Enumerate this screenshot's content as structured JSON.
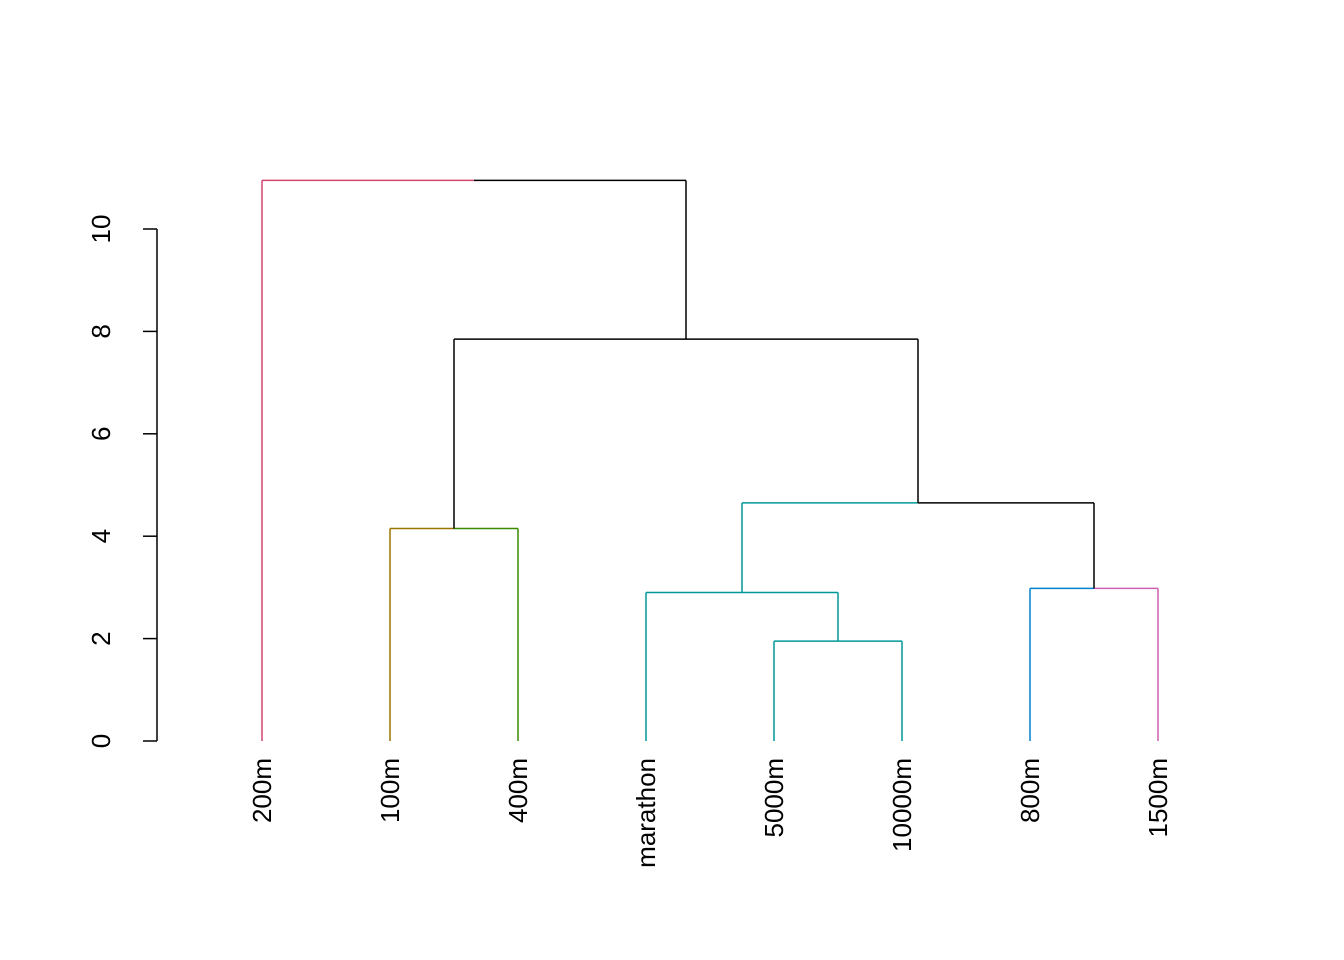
{
  "chart_data": {
    "type": "dendrogram",
    "title": "",
    "xlabel": "",
    "ylabel": "",
    "ylim": [
      0,
      10
    ],
    "yticks": [
      0,
      2,
      4,
      6,
      8,
      10
    ],
    "grid": false,
    "leaves": [
      "200m",
      "100m",
      "400m",
      "marathon",
      "5000m",
      "10000m",
      "800m",
      "1500m"
    ],
    "merges": [
      {
        "id": "n1",
        "left": "5000m",
        "right": "10000m",
        "height": 1.95,
        "left_color": "#009999",
        "right_color": "#009999"
      },
      {
        "id": "n2",
        "left": "marathon",
        "right": "n1",
        "height": 2.9,
        "left_color": "#009999",
        "right_color": "#009999"
      },
      {
        "id": "n3",
        "left": "800m",
        "right": "1500m",
        "height": 2.98,
        "left_color": "#0082CE",
        "right_color": "#CC61B0"
      },
      {
        "id": "n4",
        "left": "100m",
        "right": "400m",
        "height": 4.15,
        "left_color": "#9A7700",
        "right_color": "#3A8B00"
      },
      {
        "id": "n5",
        "left": "n2",
        "right": "n3",
        "height": 4.65,
        "left_color": "#009999",
        "right_color": "#000000"
      },
      {
        "id": "n6",
        "left": "n4",
        "right": "n5",
        "height": 7.85,
        "left_color": "#000000",
        "right_color": "#000000"
      },
      {
        "id": "n7",
        "left": "200m",
        "right": "n6",
        "height": 10.95,
        "left_color": "#D2476F",
        "right_color": "#000000"
      }
    ],
    "leaf_colors": {
      "200m": "#D2476F",
      "100m": "#9A7700",
      "400m": "#3A8B00",
      "marathon": "#009999",
      "5000m": "#009999",
      "10000m": "#009999",
      "800m": "#0082CE",
      "1500m": "#CC61B0"
    }
  }
}
